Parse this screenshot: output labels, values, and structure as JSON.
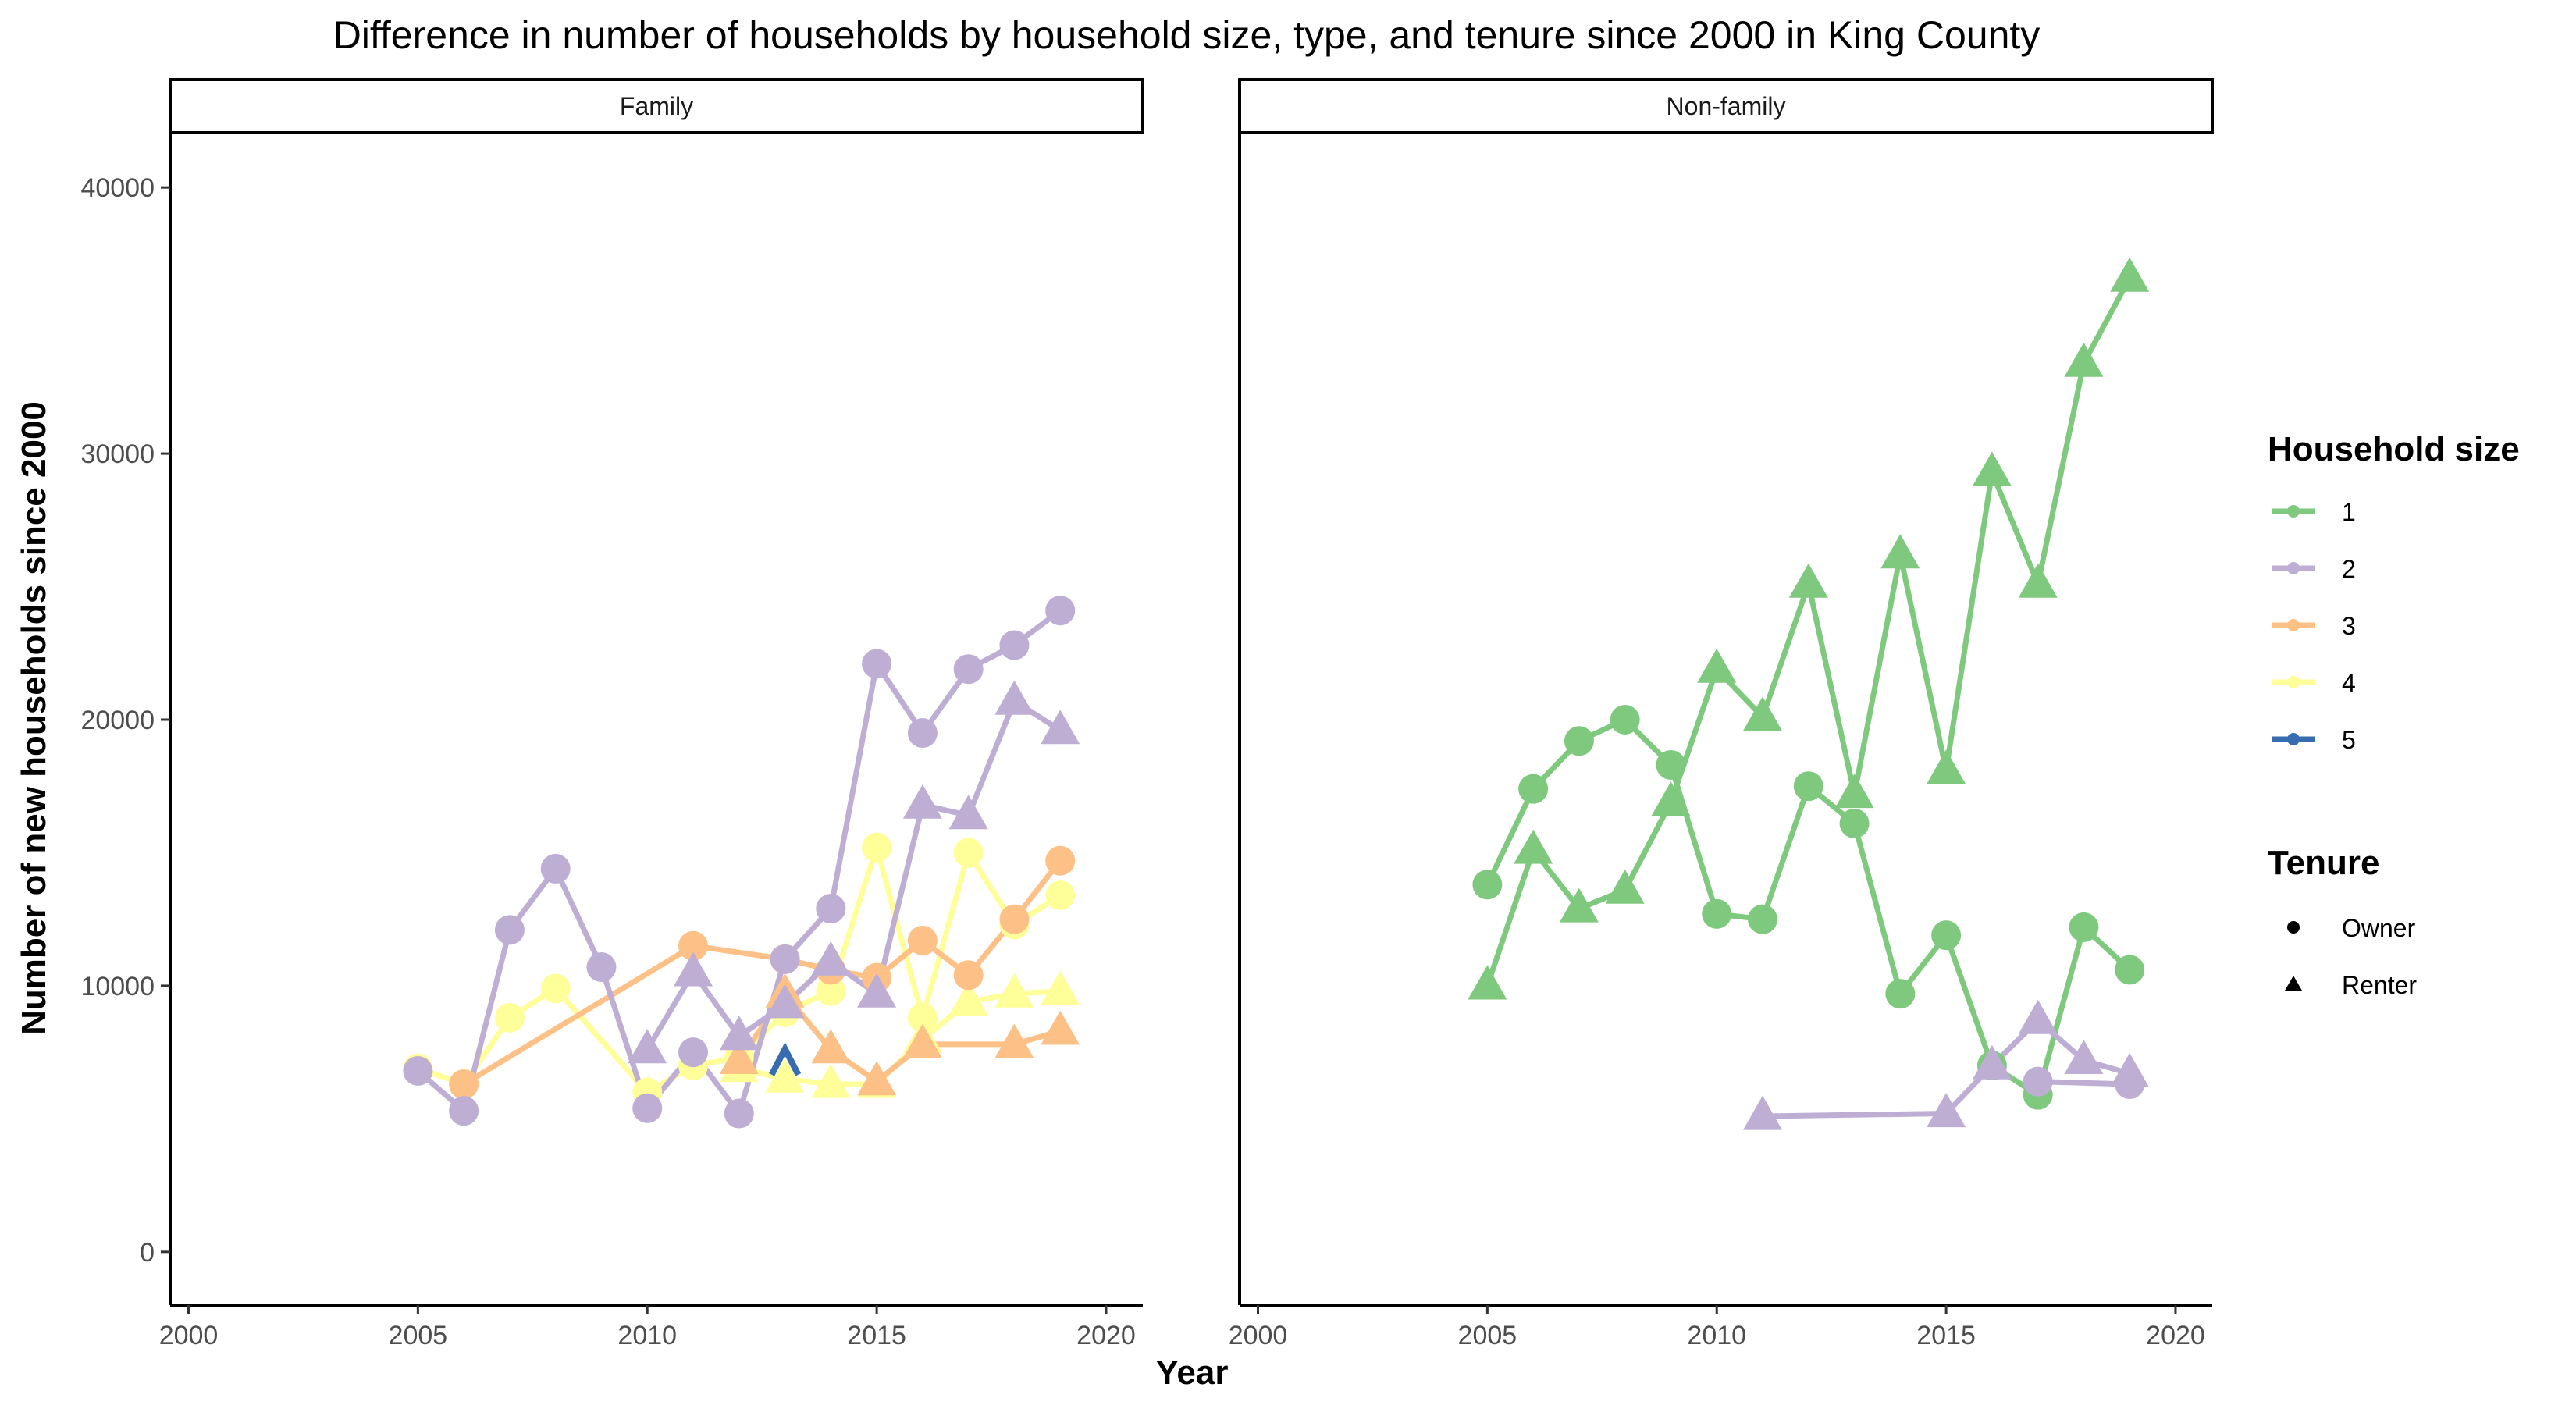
{
  "chart_data": {
    "type": "line",
    "title": "Difference in number of households by household size, type, and tenure since 2000 in King County",
    "xlabel": "Year",
    "ylabel": "Number of new households since 2000",
    "xlim": [
      1999.6,
      2020.8
    ],
    "ylim": [
      -2000,
      42000
    ],
    "xticks": [
      2000,
      2005,
      2010,
      2015,
      2020
    ],
    "yticks": [
      0,
      10000,
      20000,
      30000,
      40000
    ],
    "facets": [
      "Family",
      "Non-family"
    ],
    "legend": {
      "size_title": "Household size",
      "sizes": [
        {
          "label": "1",
          "color": "#7fc97f"
        },
        {
          "label": "2",
          "color": "#beaed4"
        },
        {
          "label": "3",
          "color": "#fdc086"
        },
        {
          "label": "4",
          "color": "#ffff99"
        },
        {
          "label": "5",
          "color": "#386cb0"
        }
      ],
      "tenure_title": "Tenure",
      "tenures": [
        {
          "label": "Owner",
          "shape": "circle"
        },
        {
          "label": "Renter",
          "shape": "triangle"
        }
      ]
    },
    "series": [
      {
        "facet": "Family",
        "size": "4",
        "tenure": "Owner",
        "x": [
          2005,
          2006,
          2007,
          2008,
          2010,
          2011,
          2012,
          2013,
          2014,
          2015,
          2016,
          2017,
          2018,
          2019
        ],
        "y": [
          6900,
          6300,
          8800,
          9900,
          6000,
          7000,
          7300,
          9000,
          9800,
          15200,
          8800,
          15000,
          12300,
          13400
        ]
      },
      {
        "facet": "Family",
        "size": "4",
        "tenure": "Renter",
        "x": [
          2012,
          2013,
          2014,
          2015,
          2016,
          2017,
          2018,
          2019
        ],
        "y": [
          6900,
          6500,
          6300,
          6300,
          8000,
          9400,
          9700,
          9800
        ]
      },
      {
        "facet": "Family",
        "size": "3",
        "tenure": "Owner",
        "x": [
          2006,
          2011,
          2013,
          2014,
          2015,
          2016,
          2017,
          2018,
          2019
        ],
        "y": [
          6300,
          11500,
          11000,
          10600,
          10300,
          11700,
          10400,
          12500,
          14700
        ]
      },
      {
        "facet": "Family",
        "size": "3",
        "tenure": "Renter",
        "x": [
          2012,
          2013,
          2014,
          2015,
          2016,
          2018,
          2019
        ],
        "y": [
          7200,
          9700,
          7600,
          6400,
          7800,
          7800,
          8300
        ]
      },
      {
        "facet": "Family",
        "size": "2",
        "tenure": "Owner",
        "x": [
          2005,
          2006,
          2007,
          2008,
          2009,
          2010,
          2011,
          2012,
          2013,
          2014,
          2015,
          2016,
          2017,
          2018,
          2019
        ],
        "y": [
          6800,
          5300,
          12100,
          14400,
          10700,
          5400,
          7500,
          5200,
          11000,
          12900,
          22100,
          19500,
          21900,
          22800,
          24100
        ]
      },
      {
        "facet": "Family",
        "size": "2",
        "tenure": "Renter",
        "x": [
          2010,
          2011,
          2012,
          2013,
          2014,
          2015,
          2016,
          2017,
          2018,
          2019
        ],
        "y": [
          7600,
          10500,
          8100,
          9300,
          10900,
          9700,
          16800,
          16400,
          20700,
          19600
        ]
      },
      {
        "facet": "Family",
        "size": "5",
        "tenure": "Renter",
        "x": [
          2013
        ],
        "y": [
          7100
        ]
      },
      {
        "facet": "Non-family",
        "size": "1",
        "tenure": "Owner",
        "x": [
          2005,
          2006,
          2007,
          2008,
          2009,
          2010,
          2011,
          2012,
          2013,
          2014,
          2015,
          2016,
          2017,
          2018,
          2019
        ],
        "y": [
          13800,
          17400,
          19200,
          20000,
          18300,
          12700,
          12500,
          17500,
          16100,
          9700,
          11900,
          7000,
          5900,
          12200,
          10600
        ]
      },
      {
        "facet": "Non-family",
        "size": "1",
        "tenure": "Renter",
        "x": [
          2005,
          2006,
          2007,
          2008,
          2009,
          2010,
          2011,
          2012,
          2013,
          2014,
          2015,
          2016,
          2017,
          2018,
          2019
        ],
        "y": [
          10000,
          15100,
          12900,
          13600,
          16900,
          21900,
          20100,
          25100,
          17200,
          26200,
          18100,
          29300,
          25100,
          33400,
          36600
        ]
      },
      {
        "facet": "Non-family",
        "size": "2",
        "tenure": "Owner",
        "x": [
          2017,
          2019
        ],
        "y": [
          6400,
          6300
        ]
      },
      {
        "facet": "Non-family",
        "size": "2",
        "tenure": "Renter",
        "x": [
          2011,
          2015,
          2016,
          2017,
          2018,
          2019
        ],
        "y": [
          5100,
          5200,
          7000,
          8700,
          7200,
          6700
        ]
      }
    ]
  }
}
